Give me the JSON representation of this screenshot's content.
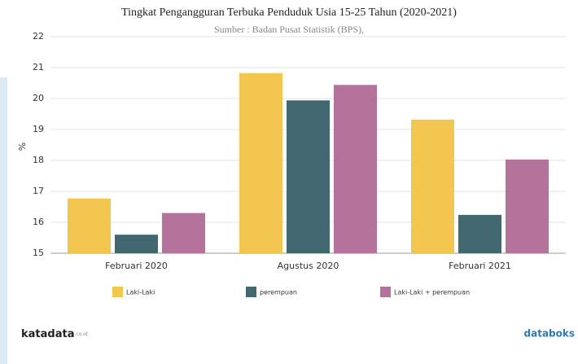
{
  "chart_data": {
    "type": "bar",
    "title": "Tingkat Pengangguran Terbuka Penduduk Usia 15-25 Tahun  (2020-2021)",
    "subtitle": "Sumber : Badan Pusat Statistik (BPS),",
    "y_label": "%",
    "categories": [
      "Februari 2020",
      "Agustus 2020",
      "Februari 2021"
    ],
    "series": [
      {
        "name": "Laki-Laki",
        "color": "#f2c64f",
        "values": [
          16.77,
          20.82,
          19.32
        ]
      },
      {
        "name": "perempuan",
        "color": "#41676f",
        "values": [
          15.6,
          19.94,
          16.24
        ]
      },
      {
        "name": "Laki-Laki + perempuan",
        "color": "#b5739b",
        "values": [
          16.3,
          20.44,
          18.03
        ]
      }
    ],
    "ylim": [
      15,
      22
    ],
    "yticks": [
      15,
      16,
      17,
      18,
      19,
      20,
      21,
      22
    ],
    "grid": true
  },
  "branding": {
    "left": "katadata",
    "left_suffix": ".co.id",
    "right": "databoks"
  }
}
